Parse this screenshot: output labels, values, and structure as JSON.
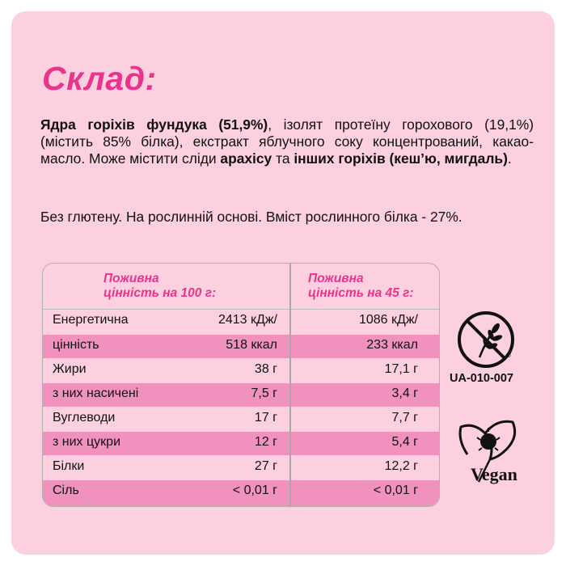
{
  "title": "Склад:",
  "ingredients": {
    "p1_bold": "Ядра горіхів фундука (51,9%)",
    "p1_text": ", ізолят протеїну горохового (19,1%) (містить 85% білка), екстракт яблучного соку концентрований, какао-масло. Може містити сліди ",
    "p1_bold2": "арахісу",
    "p1_text2": " та ",
    "p1_bold3": "інших горіхів (кеш’ю, мигдаль)",
    "p1_text3": "."
  },
  "note": "Без глютену. На рослинній основі. Вміст рослинного білка - 27%.",
  "table": {
    "header_100_line1": "Поживна",
    "header_100_line2": "цінність на 100 г:",
    "header_45_line1": "Поживна",
    "header_45_line2": "цінність на 45 г:",
    "rows": [
      {
        "label": "Енергетична",
        "v100": "2413 кДж/",
        "v45": "1086 кДж/"
      },
      {
        "label": "цінність",
        "v100": "518 ккал",
        "v45": "233 ккал"
      },
      {
        "label": "Жири",
        "v100": "38 г",
        "v45": "17,1 г"
      },
      {
        "label": "з них насичені",
        "v100": "7,5 г",
        "v45": "3,4 г"
      },
      {
        "label": "Вуглеводи",
        "v100": "17 г",
        "v45": "7,7 г"
      },
      {
        "label": "з них цукри",
        "v100": "12 г",
        "v45": "5,4 г"
      },
      {
        "label": "Білки",
        "v100": "27 г",
        "v45": "12,2 г"
      },
      {
        "label": "Сіль",
        "v100": "< 0,01 г",
        "v45": "< 0,01 г"
      }
    ]
  },
  "gluten_free_code": "UA-010-007",
  "vegan_label": "Vegan",
  "colors": {
    "accent": "#e8358b",
    "background": "#fcd0df",
    "row_pink": "#f091be"
  }
}
